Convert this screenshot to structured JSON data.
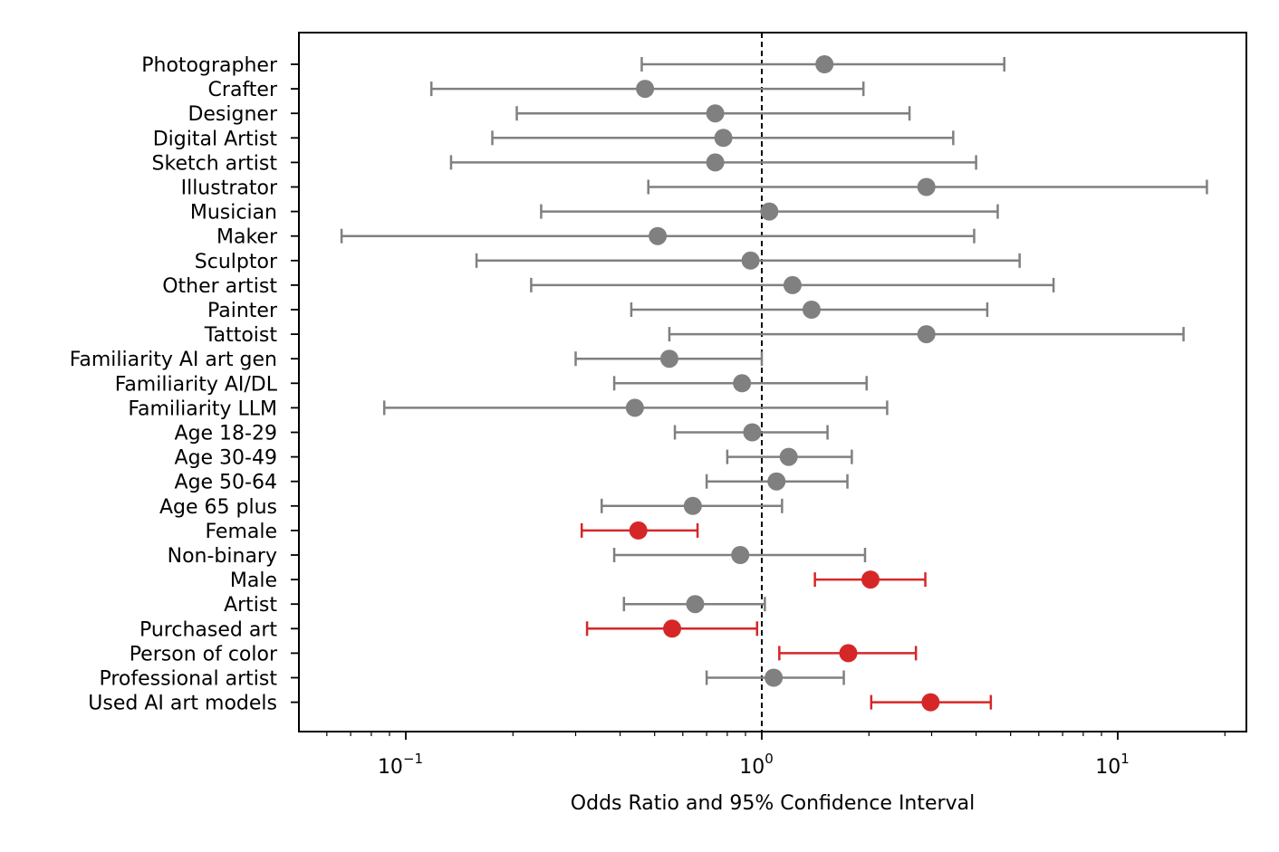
{
  "chart_data": {
    "type": "forest",
    "title": "",
    "xlabel": "Odds Ratio and 95% Confidence Interval",
    "ylabel": "",
    "xscale": "log",
    "xlim": [
      0.05,
      24
    ],
    "reference_line": 1,
    "x_tick_labels": [
      {
        "value": 0.1,
        "base": "10",
        "exp": "−1"
      },
      {
        "value": 1,
        "base": "10",
        "exp": "0"
      },
      {
        "value": 10,
        "base": "10",
        "exp": "1"
      }
    ],
    "colors": {
      "nonsignificant": "#808080",
      "significant": "#d62728",
      "reference": "#000000"
    },
    "rows": [
      {
        "label": "Photographer",
        "or": 1.5,
        "lo": 0.46,
        "hi": 4.8,
        "significant": false
      },
      {
        "label": "Crafter",
        "or": 0.47,
        "lo": 0.118,
        "hi": 1.93,
        "significant": false
      },
      {
        "label": "Designer",
        "or": 0.74,
        "lo": 0.205,
        "hi": 2.6,
        "significant": false
      },
      {
        "label": "Digital Artist",
        "or": 0.78,
        "lo": 0.175,
        "hi": 3.45,
        "significant": false
      },
      {
        "label": "Sketch artist",
        "or": 0.74,
        "lo": 0.134,
        "hi": 4.0,
        "significant": false
      },
      {
        "label": "Illustrator",
        "or": 2.9,
        "lo": 0.48,
        "hi": 17.8,
        "significant": false
      },
      {
        "label": "Musician",
        "or": 1.05,
        "lo": 0.24,
        "hi": 4.6,
        "significant": false
      },
      {
        "label": "Maker",
        "or": 0.51,
        "lo": 0.066,
        "hi": 3.95,
        "significant": false
      },
      {
        "label": "Sculptor",
        "or": 0.93,
        "lo": 0.158,
        "hi": 5.3,
        "significant": false
      },
      {
        "label": "Other artist",
        "or": 1.22,
        "lo": 0.225,
        "hi": 6.6,
        "significant": false
      },
      {
        "label": "Painter",
        "or": 1.38,
        "lo": 0.43,
        "hi": 4.3,
        "significant": false
      },
      {
        "label": "Tattoist",
        "or": 2.9,
        "lo": 0.55,
        "hi": 15.3,
        "significant": false
      },
      {
        "label": "Familiarity AI art gen",
        "or": 0.55,
        "lo": 0.3,
        "hi": 1.0,
        "significant": false
      },
      {
        "label": "Familiarity AI/DL",
        "or": 0.88,
        "lo": 0.385,
        "hi": 1.97,
        "significant": false
      },
      {
        "label": "Familiarity LLM",
        "or": 0.44,
        "lo": 0.087,
        "hi": 2.25,
        "significant": false
      },
      {
        "label": "Age 18-29",
        "or": 0.94,
        "lo": 0.57,
        "hi": 1.53,
        "significant": false
      },
      {
        "label": "Age 30-49",
        "or": 1.19,
        "lo": 0.8,
        "hi": 1.79,
        "significant": false
      },
      {
        "label": "Age 50-64",
        "or": 1.1,
        "lo": 0.7,
        "hi": 1.74,
        "significant": false
      },
      {
        "label": "Age 65 plus",
        "or": 0.64,
        "lo": 0.355,
        "hi": 1.14,
        "significant": false
      },
      {
        "label": "Female",
        "or": 0.45,
        "lo": 0.312,
        "hi": 0.66,
        "significant": true
      },
      {
        "label": "Non-binary",
        "or": 0.87,
        "lo": 0.385,
        "hi": 1.95,
        "significant": false
      },
      {
        "label": "Male",
        "or": 2.02,
        "lo": 1.41,
        "hi": 2.88,
        "significant": true
      },
      {
        "label": "Artist",
        "or": 0.65,
        "lo": 0.41,
        "hi": 1.02,
        "significant": false
      },
      {
        "label": "Purchased art",
        "or": 0.56,
        "lo": 0.323,
        "hi": 0.97,
        "significant": true
      },
      {
        "label": "Person of color",
        "or": 1.75,
        "lo": 1.12,
        "hi": 2.71,
        "significant": true
      },
      {
        "label": "Professional artist",
        "or": 1.08,
        "lo": 0.7,
        "hi": 1.7,
        "significant": false
      },
      {
        "label": "Used AI art models",
        "or": 2.98,
        "lo": 2.03,
        "hi": 4.4,
        "significant": true
      }
    ]
  }
}
